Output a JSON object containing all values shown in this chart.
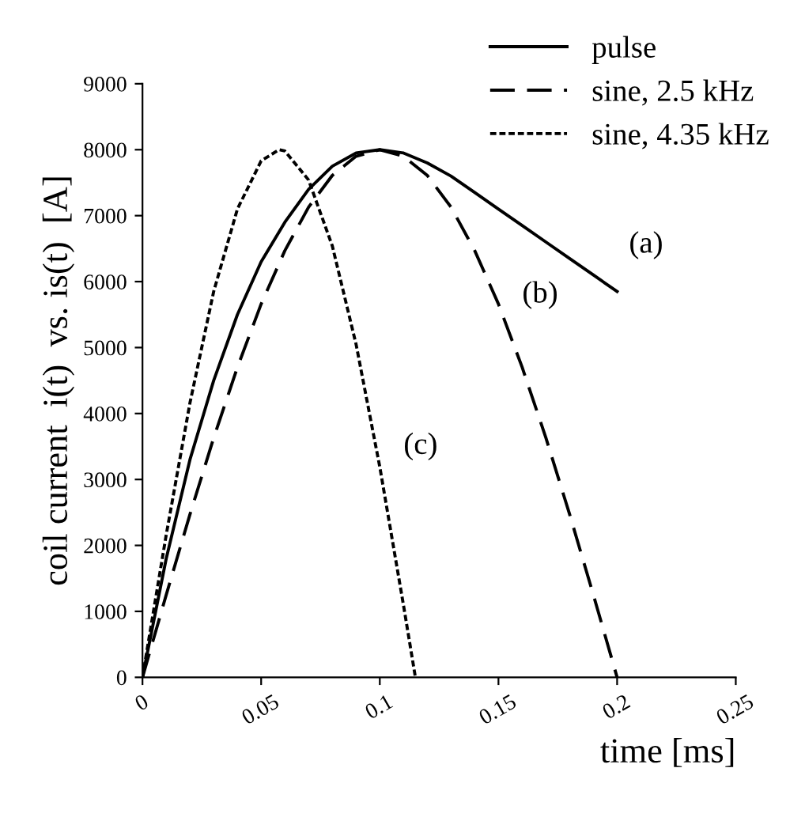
{
  "chart_data": {
    "type": "line",
    "xlabel": "time [ms]",
    "ylabel": "coil current  i(t)  vs. is(t)  [A]",
    "xlim": [
      0,
      0.25
    ],
    "xticks": [
      0,
      0.05,
      0.1,
      0.15,
      0.2,
      0.25
    ],
    "ylim": [
      0,
      9000
    ],
    "yticks": [
      0,
      1000,
      2000,
      3000,
      4000,
      5000,
      6000,
      7000,
      8000,
      9000
    ],
    "grid": false,
    "legend": "top right",
    "marker": "none",
    "series": [
      {
        "name": "pulse",
        "color": "#000000",
        "line_style": "solid",
        "x": [
          0,
          0.01,
          0.02,
          0.03,
          0.04,
          0.05,
          0.06,
          0.07,
          0.08,
          0.09,
          0.1,
          0.11,
          0.12,
          0.13,
          0.14,
          0.15,
          0.16,
          0.17,
          0.18,
          0.19,
          0.2
        ],
        "values": [
          0,
          1800,
          3300,
          4500,
          5500,
          6300,
          6900,
          7400,
          7750,
          7950,
          8000,
          7950,
          7800,
          7600,
          7350,
          7100,
          6850,
          6600,
          6350,
          6100,
          5850
        ]
      },
      {
        "name": "sine, 2.5 kHz",
        "color": "#000000",
        "line_style": "dashed",
        "x": [
          0,
          0.01,
          0.02,
          0.03,
          0.04,
          0.05,
          0.06,
          0.07,
          0.08,
          0.09,
          0.1,
          0.11,
          0.12,
          0.13,
          0.14,
          0.15,
          0.16,
          0.17,
          0.18,
          0.19,
          0.2
        ],
        "values": [
          0,
          1250,
          2470,
          3630,
          4700,
          5660,
          6470,
          7130,
          7610,
          7900,
          8000,
          7900,
          7610,
          7130,
          6470,
          5660,
          4700,
          3630,
          2470,
          1250,
          0
        ]
      },
      {
        "name": "sine, 4.35 kHz",
        "color": "#000000",
        "line_style": "dotted",
        "x": [
          0,
          0.01,
          0.02,
          0.03,
          0.04,
          0.05,
          0.0575,
          0.06,
          0.07,
          0.08,
          0.09,
          0.1,
          0.11,
          0.115
        ],
        "values": [
          0,
          2160,
          4160,
          5850,
          7100,
          7830,
          8000,
          7980,
          7540,
          6540,
          5050,
          3190,
          1090,
          0
        ]
      }
    ],
    "annotations": [
      "(a)",
      "(b)",
      "(c)"
    ]
  }
}
